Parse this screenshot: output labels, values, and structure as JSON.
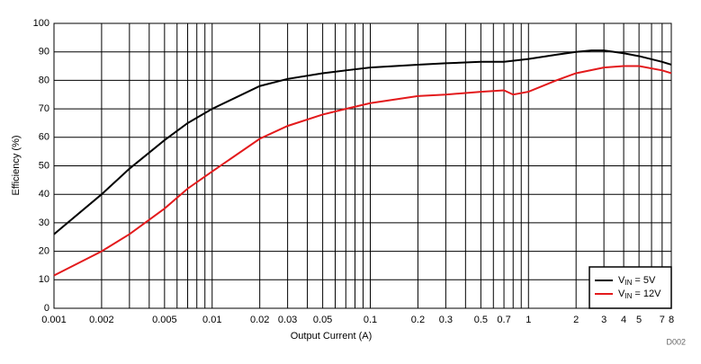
{
  "chart_data": {
    "type": "line",
    "xlabel": "Output Current (A)",
    "ylabel": "Efficiency (%)",
    "footnote": "D002",
    "xscale": "log",
    "xlim": [
      0.001,
      8
    ],
    "ylim": [
      0,
      100
    ],
    "xticks": [
      0.001,
      0.002,
      0.005,
      0.01,
      0.02,
      0.03,
      0.05,
      0.1,
      0.2,
      0.3,
      0.5,
      0.7,
      1,
      2,
      3,
      4,
      5,
      7,
      8
    ],
    "xgrid": [
      0.003,
      0.004,
      0.006,
      0.007,
      0.008,
      0.009,
      0.04,
      0.06,
      0.07,
      0.08,
      0.09,
      0.4,
      0.6,
      0.8,
      0.9,
      6
    ],
    "yticks": [
      0,
      10,
      20,
      30,
      40,
      50,
      60,
      70,
      80,
      90,
      100
    ],
    "grid": true,
    "legend": "lower right",
    "series": [
      {
        "name": "VIN = 5V",
        "color": "#000000",
        "x": [
          0.001,
          0.002,
          0.003,
          0.005,
          0.007,
          0.01,
          0.02,
          0.03,
          0.05,
          0.07,
          0.1,
          0.2,
          0.3,
          0.5,
          0.7,
          1,
          1.5,
          2,
          2.5,
          3,
          4,
          5,
          7,
          8
        ],
        "values": [
          26,
          40,
          49,
          59,
          65,
          70,
          78,
          80.5,
          82.5,
          83.5,
          84.5,
          85.5,
          86,
          86.5,
          86.5,
          87.5,
          89,
          90,
          90.5,
          90.5,
          89.5,
          88.5,
          86.5,
          85.5
        ]
      },
      {
        "name": "VIN = 12V",
        "color": "#e31a1c",
        "x": [
          0.001,
          0.002,
          0.003,
          0.005,
          0.007,
          0.01,
          0.02,
          0.03,
          0.05,
          0.07,
          0.1,
          0.2,
          0.3,
          0.5,
          0.7,
          0.8,
          1,
          1.5,
          2,
          3,
          4,
          5,
          7,
          8
        ],
        "values": [
          11.5,
          20,
          26,
          35,
          42,
          48,
          59.5,
          64,
          68,
          70,
          72,
          74.5,
          75,
          76,
          76.5,
          75,
          76,
          80,
          82.5,
          84.5,
          85,
          85,
          83.5,
          82.5
        ]
      }
    ]
  }
}
